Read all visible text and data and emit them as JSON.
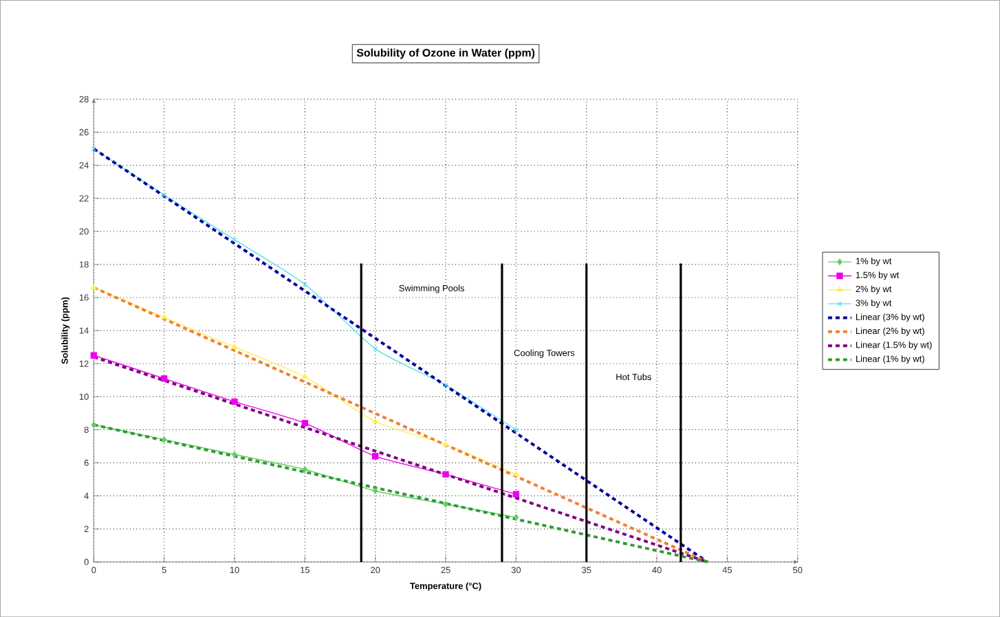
{
  "chart_data": {
    "type": "line",
    "title": "Solubility of Ozone in Water (ppm)",
    "xlabel": "Temperature (°C)",
    "ylabel": "Solubility (ppm)",
    "xlim": [
      0,
      50
    ],
    "xticks": [
      0,
      5,
      10,
      15,
      20,
      25,
      30,
      35,
      40,
      45,
      50
    ],
    "ylim": [
      0,
      28
    ],
    "yticks": [
      0,
      2,
      4,
      6,
      8,
      10,
      12,
      14,
      16,
      18,
      20,
      22,
      24,
      26,
      28
    ],
    "grid": true,
    "legend": "right",
    "series": [
      {
        "name": "1% by wt",
        "color": "#66cc66",
        "marker": "diamond",
        "x": [
          0,
          5,
          10,
          15,
          20,
          25,
          30
        ],
        "values": [
          8.3,
          7.4,
          6.5,
          5.6,
          4.3,
          3.5,
          2.7
        ]
      },
      {
        "name": "1.5% by wt",
        "color": "#ee00ee",
        "marker": "square",
        "x": [
          0,
          5,
          10,
          15,
          20,
          25,
          30
        ],
        "values": [
          12.5,
          11.1,
          9.7,
          8.4,
          6.4,
          5.3,
          4.1
        ]
      },
      {
        "name": "2% by wt",
        "color": "#ffee55",
        "marker": "triangle",
        "x": [
          0,
          5,
          10,
          15,
          20,
          25,
          30
        ],
        "values": [
          16.6,
          14.8,
          13.0,
          11.2,
          8.5,
          7.1,
          5.3
        ]
      },
      {
        "name": "3% by wt",
        "color": "#55e0ee",
        "marker": "cross",
        "x": [
          0,
          5,
          10,
          15,
          20,
          25,
          30
        ],
        "values": [
          25.0,
          22.2,
          19.5,
          16.8,
          12.9,
          10.7,
          8.0
        ]
      },
      {
        "name": "Linear (3% by wt)",
        "color": "#000099",
        "marker": "none",
        "line_style": "dashed",
        "x": [
          0,
          43.6
        ],
        "values": [
          25.0,
          0
        ]
      },
      {
        "name": "Linear (2% by wt)",
        "color": "#f08030",
        "marker": "none",
        "line_style": "dashed",
        "x": [
          0,
          43.6
        ],
        "values": [
          16.6,
          0
        ]
      },
      {
        "name": "Linear (1.5% by wt)",
        "color": "#800080",
        "marker": "none",
        "line_style": "dashed",
        "x": [
          0,
          43.6
        ],
        "values": [
          12.4,
          0
        ]
      },
      {
        "name": "Linear (1% by wt)",
        "color": "#339933",
        "marker": "none",
        "line_style": "dashed",
        "x": [
          0,
          43.6
        ],
        "values": [
          8.3,
          0
        ]
      }
    ],
    "ref_lines": [
      {
        "axis": "x",
        "value": 19,
        "color": "#000000"
      },
      {
        "axis": "x",
        "value": 29,
        "color": "#000000"
      },
      {
        "axis": "x",
        "value": 35,
        "color": "#000000"
      },
      {
        "axis": "x",
        "value": 41.7,
        "color": "#000000"
      }
    ],
    "annotations": [
      "Swimming Pools",
      "Cooling Towers",
      "Hot Tubs"
    ]
  }
}
